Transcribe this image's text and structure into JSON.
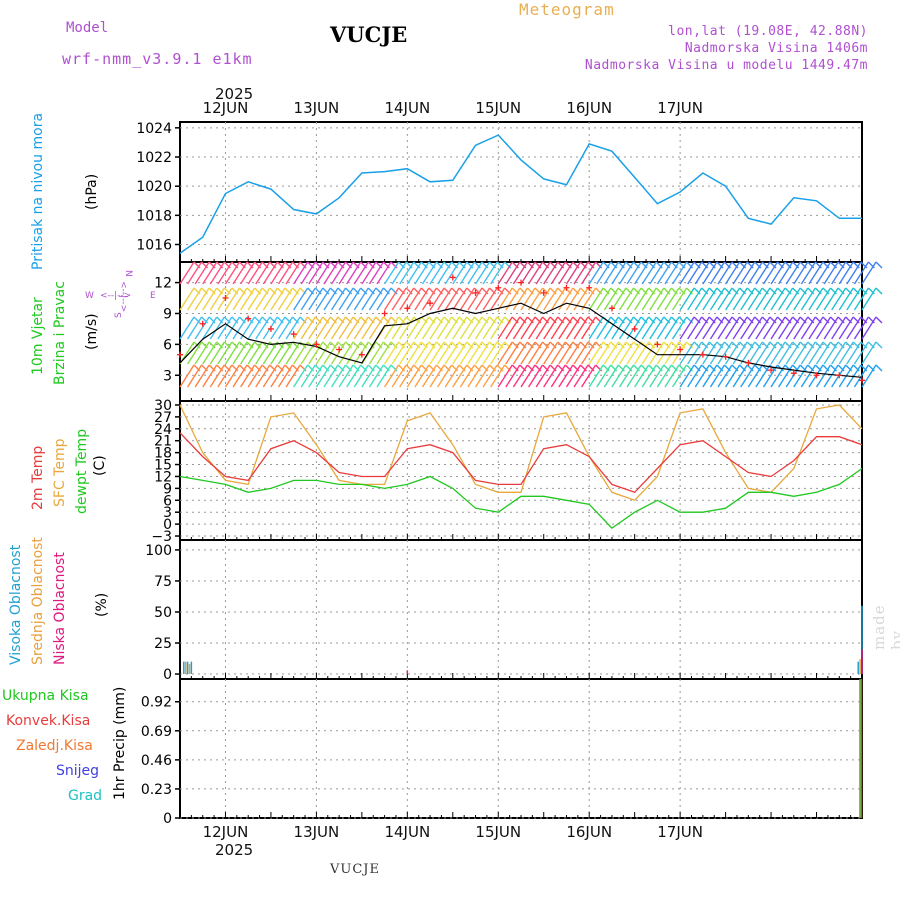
{
  "header": {
    "model_label": "Model",
    "model_name": "wrf-nmm_v3.9.1  e1km",
    "station": "VUCJE",
    "product": "Meteogram",
    "lonlat": "lon,lat (19.08E, 42.88N)",
    "altitude": "Nadmorska Visina 1406m",
    "model_altitude": "Nadmorska Visina u modelu 1449.47m"
  },
  "time_axis": {
    "year": "2025",
    "days": [
      "12JUN",
      "13JUN",
      "14JUN",
      "15JUN",
      "16JUN",
      "17JUN"
    ]
  },
  "watermark": "made by Angel",
  "footer_station": "VUCJE",
  "colors": {
    "pressure": "#1aa0e8",
    "temp2m": "#e83c3c",
    "sfc_temp": "#e8a83c",
    "dewpt": "#20c820",
    "wind_speed": "#000000",
    "wind_gust": "#ff2020",
    "high_cloud": "#20a0d0",
    "mid_cloud": "#e8a040",
    "low_cloud": "#e01880",
    "precip_total": "#20c820",
    "precip_conv": "#e83c3c",
    "precip_frozen": "#f07830",
    "snow": "#4040e0",
    "hail": "#20c0c0"
  },
  "chart_data": [
    {
      "type": "line",
      "name": "pressure",
      "ylabel_1": "Pritisak na nivou mora",
      "ylabel_2": "(hPa)",
      "ylim": [
        1014.8,
        1024.4
      ],
      "yticks": [
        1016,
        1018,
        1020,
        1022,
        1024
      ],
      "x": [
        0,
        6,
        12,
        18,
        24,
        30,
        36,
        42,
        48,
        54,
        60,
        66,
        72,
        78,
        84,
        90,
        96,
        102,
        108,
        114,
        120,
        126,
        132,
        138,
        144,
        150,
        156,
        162,
        168,
        174,
        180
      ],
      "series": [
        {
          "values": [
            1015.4,
            1016.5,
            1019.5,
            1020.3,
            1019.8,
            1018.4,
            1018.1,
            1019.2,
            1020.9,
            1021.0,
            1021.2,
            1020.3,
            1020.4,
            1022.8,
            1023.5,
            1021.8,
            1020.5,
            1020.1,
            1022.9,
            1022.4,
            1020.6,
            1018.8,
            1019.6,
            1020.9,
            1020.0,
            1017.8,
            1017.4,
            1019.2,
            1019.0,
            1017.8,
            1017.8
          ]
        }
      ]
    },
    {
      "type": "line",
      "name": "wind",
      "ylabel_1": "10m Vjetar",
      "ylabel_2": "Brzina i Pravac",
      "ylabel_3": "(m/s)",
      "compass": [
        "N",
        "<--|-->",
        "W",
        "E",
        "S"
      ],
      "ylim": [
        0.5,
        14
      ],
      "yticks": [
        3,
        6,
        9,
        12
      ],
      "x": [
        0,
        6,
        12,
        18,
        24,
        30,
        36,
        42,
        48,
        54,
        60,
        66,
        72,
        78,
        84,
        90,
        96,
        102,
        108,
        114,
        120,
        126,
        132,
        138,
        144,
        150,
        156,
        162,
        168,
        174,
        180
      ],
      "series": [
        {
          "name": "speed",
          "values": [
            4.2,
            6.5,
            8.0,
            6.5,
            6.0,
            6.2,
            5.8,
            4.8,
            4.2,
            7.8,
            8.0,
            9.0,
            9.5,
            9.0,
            9.5,
            10.0,
            9.0,
            10.0,
            9.5,
            8.0,
            6.5,
            5.0,
            5.0,
            5.0,
            4.8,
            4.2,
            3.8,
            3.5,
            3.2,
            3.0,
            2.8
          ]
        },
        {
          "name": "gust",
          "values": [
            5.0,
            8.0,
            10.5,
            8.5,
            7.5,
            7.0,
            6.0,
            5.5,
            5.0,
            9.0,
            9.5,
            10.0,
            12.5,
            11.0,
            11.5,
            12.0,
            11.0,
            11.5,
            11.5,
            9.5,
            7.5,
            6.0,
            5.5,
            5.0,
            4.8,
            4.2,
            3.5,
            3.2,
            3.0,
            3.0,
            2.5
          ]
        }
      ]
    },
    {
      "type": "line",
      "name": "temperature",
      "ylabel_1": "2m Temp",
      "ylabel_2": "SFC Temp",
      "ylabel_3": "dewpt Temp",
      "ylabel_4": "(C)",
      "ylim": [
        -4,
        31
      ],
      "yticks": [
        -3,
        0,
        3,
        6,
        9,
        12,
        15,
        18,
        21,
        24,
        27,
        30
      ],
      "x": [
        0,
        6,
        12,
        18,
        24,
        30,
        36,
        42,
        48,
        54,
        60,
        66,
        72,
        78,
        84,
        90,
        96,
        102,
        108,
        114,
        120,
        126,
        132,
        138,
        144,
        150,
        156,
        162,
        168,
        174,
        180
      ],
      "series": [
        {
          "name": "2m",
          "values": [
            23,
            17,
            12,
            11,
            19,
            21,
            18,
            13,
            12,
            12,
            19,
            20,
            18,
            11,
            10,
            10,
            19,
            20,
            17,
            10,
            8,
            14,
            20,
            21,
            17,
            13,
            12,
            16,
            22,
            22,
            20
          ]
        },
        {
          "name": "sfc",
          "values": [
            30,
            18,
            11,
            10,
            27,
            28,
            20,
            11,
            10,
            10,
            26,
            28,
            20,
            10,
            8,
            8,
            27,
            28,
            17,
            8,
            6,
            12,
            28,
            29,
            18,
            9,
            8,
            14,
            29,
            30,
            24
          ]
        },
        {
          "name": "dewpt",
          "values": [
            12,
            11,
            10,
            8,
            9,
            11,
            11,
            10,
            10,
            9,
            10,
            12,
            9,
            4,
            3,
            7,
            7,
            6,
            5,
            -1,
            3,
            6,
            3,
            3,
            4,
            8,
            8,
            7,
            8,
            10,
            14
          ]
        }
      ]
    },
    {
      "type": "bar",
      "name": "cloud",
      "ylabel_1": "Visoka Oblacnost",
      "ylabel_2": "Srednja Oblacnost",
      "ylabel_3": "Niska Oblacnost",
      "ylabel_4": "(%)",
      "ylim": [
        -4,
        108
      ],
      "yticks": [
        0,
        25,
        50,
        75,
        100
      ],
      "series": [
        {
          "name": "high",
          "values": [
            {
              "t": 1,
              "v": 10
            },
            {
              "t": 2,
              "v": 10
            },
            {
              "t": 3,
              "v": 10
            },
            {
              "t": 179,
              "v": 10
            },
            {
              "t": 180,
              "v": 55
            }
          ]
        },
        {
          "name": "mid",
          "values": [
            {
              "t": 1.5,
              "v": 10
            },
            {
              "t": 2.5,
              "v": 8
            },
            {
              "t": 179.5,
              "v": 12
            }
          ]
        },
        {
          "name": "low",
          "values": [
            {
              "t": 60,
              "v": 3
            },
            {
              "t": 180,
              "v": 20
            }
          ]
        }
      ]
    },
    {
      "type": "bar",
      "name": "precip",
      "legend": [
        "Ukupna Kisa",
        "Konvek.Kisa",
        "Zaledj.Kisa",
        "Snijeg",
        "Grad"
      ],
      "ylabel": "1hr Precip (mm)",
      "ylim": [
        0,
        1.1
      ],
      "yticks": [
        "0",
        "0.23",
        "0.46",
        "0.69",
        "0.92"
      ],
      "series": [
        {
          "name": "Ukupna Kisa",
          "values": [
            {
              "t": 180,
              "v": 1.1
            }
          ]
        },
        {
          "name": "Konvek.Kisa",
          "values": [
            {
              "t": 180,
              "v": 1.1
            }
          ]
        }
      ]
    }
  ]
}
